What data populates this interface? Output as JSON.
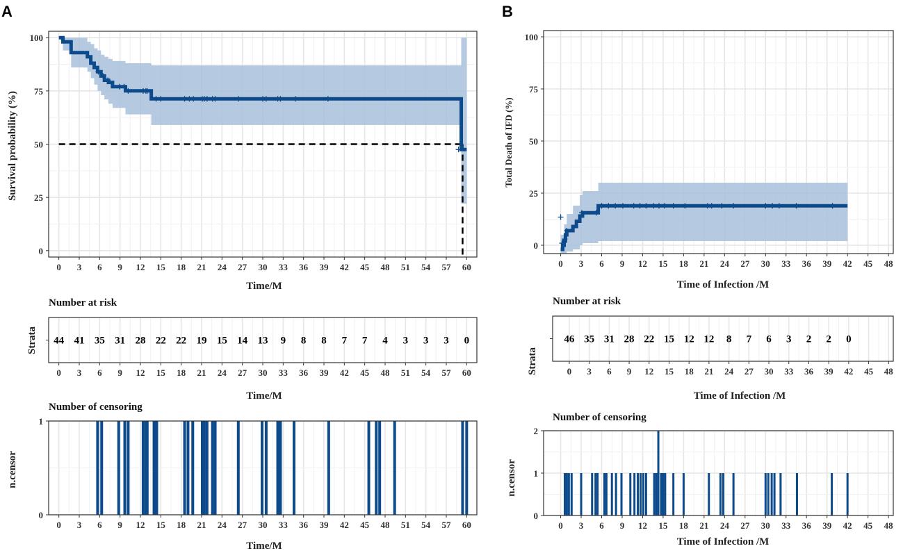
{
  "colors": {
    "curve": "#0d4a8c",
    "band": "#a8c0da",
    "dash": "#000000"
  },
  "panel_a": {
    "label": "A",
    "xlabel": "Time/M",
    "ylabel": "Survival probability (%)",
    "risk_title": "Number at risk",
    "risk_ylabel": "Strata",
    "risk_xlabel": "Time/M",
    "censor_title": "Number of censoring",
    "censor_ylabel": "n.censor",
    "censor_xlabel": "Time/M"
  },
  "panel_b": {
    "label": "B",
    "xlabel": "Time of Infection /M",
    "ylabel": "Total  Death of IFD  (%)",
    "risk_title": "Number at risk",
    "risk_ylabel": "Strata",
    "risk_xlabel": "Time of Infection /M",
    "censor_title": "Number of censoring",
    "censor_ylabel": "n.censor",
    "censor_xlabel": "Time of Infection /M"
  },
  "chart_data": [
    {
      "id": "A-main",
      "type": "line",
      "title": "",
      "xlabel": "Time/M",
      "ylabel": "Survival probability (%)",
      "xlim": [
        -1.5,
        61.5
      ],
      "ylim": [
        -3,
        103
      ],
      "xticks": [
        0,
        3,
        6,
        9,
        12,
        15,
        18,
        21,
        24,
        27,
        30,
        33,
        36,
        39,
        42,
        45,
        48,
        51,
        54,
        57,
        60
      ],
      "yticks": [
        0,
        25,
        50,
        75,
        100
      ],
      "survival": [
        [
          0,
          100
        ],
        [
          0.6,
          100
        ],
        [
          0.6,
          98
        ],
        [
          1.8,
          98
        ],
        [
          1.8,
          93
        ],
        [
          4.2,
          93
        ],
        [
          4.2,
          91
        ],
        [
          4.7,
          91
        ],
        [
          4.7,
          88
        ],
        [
          5.2,
          88
        ],
        [
          5.2,
          86
        ],
        [
          5.7,
          86
        ],
        [
          5.7,
          84
        ],
        [
          6.2,
          84
        ],
        [
          6.2,
          82
        ],
        [
          6.7,
          82
        ],
        [
          6.7,
          80
        ],
        [
          7.3,
          80
        ],
        [
          7.3,
          79
        ],
        [
          7.9,
          79
        ],
        [
          7.9,
          77
        ],
        [
          9.8,
          77
        ],
        [
          9.8,
          75
        ],
        [
          13.6,
          75
        ],
        [
          13.6,
          71.3
        ],
        [
          59.2,
          71.3
        ],
        [
          59.2,
          47.5
        ],
        [
          60,
          47.5
        ]
      ],
      "ci_upper": [
        [
          0,
          100
        ],
        [
          0.6,
          100
        ],
        [
          1.8,
          100
        ],
        [
          4.2,
          98
        ],
        [
          4.7,
          97
        ],
        [
          5.2,
          95
        ],
        [
          5.7,
          94
        ],
        [
          6.2,
          92
        ],
        [
          6.7,
          91
        ],
        [
          7.3,
          90
        ],
        [
          7.9,
          89
        ],
        [
          9.8,
          88
        ],
        [
          13.6,
          87
        ],
        [
          59.2,
          87
        ],
        [
          59.2,
          100
        ],
        [
          60,
          100
        ]
      ],
      "ci_lower": [
        [
          0,
          100
        ],
        [
          0.6,
          94
        ],
        [
          1.8,
          86
        ],
        [
          4.2,
          84
        ],
        [
          4.7,
          81
        ],
        [
          5.2,
          78
        ],
        [
          5.7,
          75
        ],
        [
          6.2,
          73
        ],
        [
          6.7,
          71
        ],
        [
          7.3,
          69
        ],
        [
          7.9,
          67
        ],
        [
          9.8,
          64
        ],
        [
          13.6,
          59
        ],
        [
          59.2,
          59
        ],
        [
          59.2,
          22
        ],
        [
          60,
          22
        ]
      ],
      "censor_marks": [
        [
          5.8,
          84
        ],
        [
          6.5,
          82
        ],
        [
          7.2,
          80
        ],
        [
          8.9,
          77
        ],
        [
          9.6,
          77
        ],
        [
          10.2,
          75
        ],
        [
          12.4,
          75
        ],
        [
          12.8,
          75
        ],
        [
          13.0,
          75
        ],
        [
          14.3,
          71.3
        ],
        [
          15.0,
          71.3
        ],
        [
          18.5,
          71.3
        ],
        [
          19.2,
          71.3
        ],
        [
          19.8,
          71.3
        ],
        [
          21.1,
          71.3
        ],
        [
          21.4,
          71.3
        ],
        [
          21.8,
          71.3
        ],
        [
          22.6,
          71.3
        ],
        [
          23.0,
          71.3
        ],
        [
          26.4,
          71.3
        ],
        [
          30.0,
          71.3
        ],
        [
          30.5,
          71.3
        ],
        [
          32.2,
          71.3
        ],
        [
          32.6,
          71.3
        ],
        [
          34.8,
          71.3
        ],
        [
          39.6,
          71.3
        ],
        [
          58.8,
          47.5
        ]
      ],
      "median_line": {
        "y": 50,
        "x": 59.4
      }
    },
    {
      "id": "A-risk",
      "type": "table",
      "title": "Number at risk",
      "xlabel": "Time/M",
      "ylabel": "Strata",
      "times": [
        0,
        3,
        6,
        9,
        12,
        15,
        18,
        21,
        24,
        27,
        30,
        33,
        36,
        39,
        42,
        45,
        48,
        51,
        54,
        57,
        60
      ],
      "values": [
        44,
        41,
        35,
        31,
        28,
        22,
        22,
        19,
        15,
        14,
        13,
        9,
        8,
        8,
        7,
        7,
        4,
        3,
        3,
        3,
        0
      ]
    },
    {
      "id": "A-censor",
      "type": "bar",
      "title": "Number of censoring",
      "xlabel": "Time/M",
      "ylabel": "n.censor",
      "xlim": [
        -1.5,
        61.5
      ],
      "ylim": [
        0,
        1
      ],
      "xticks": [
        0,
        3,
        6,
        9,
        12,
        15,
        18,
        21,
        24,
        27,
        30,
        33,
        36,
        39,
        42,
        45,
        48,
        51,
        54,
        57,
        60
      ],
      "yticks": [
        0,
        1
      ],
      "x": [
        5.7,
        6.3,
        8.8,
        9.7,
        10.2,
        12.4,
        12.8,
        13.0,
        14.0,
        14.4,
        18.5,
        19.0,
        19.7,
        21.1,
        21.4,
        21.8,
        22.6,
        23.0,
        26.4,
        29.9,
        30.5,
        32.2,
        32.6,
        34.6,
        39.7,
        45.6,
        46.7,
        47.2,
        49.4,
        59.4,
        60.0
      ],
      "values": [
        1,
        1,
        1,
        1,
        1,
        1,
        1,
        1,
        1,
        1,
        1,
        1,
        1,
        1,
        1,
        1,
        1,
        1,
        1,
        1,
        1,
        1,
        1,
        1,
        1,
        1,
        1,
        1,
        1,
        1,
        1
      ]
    },
    {
      "id": "B-main",
      "type": "line",
      "title": "",
      "xlabel": "Time of Infection /M",
      "ylabel": "Total  Death of IFD  (%)",
      "xlim": [
        -2.5,
        48.7
      ],
      "ylim": [
        -4,
        103
      ],
      "xticks": [
        0,
        3,
        6,
        9,
        12,
        15,
        18,
        21,
        24,
        27,
        30,
        33,
        36,
        39,
        42,
        45,
        48
      ],
      "yticks": [
        0,
        25,
        50,
        75,
        100
      ],
      "survival": [
        [
          0,
          -2
        ],
        [
          0.3,
          -2
        ],
        [
          0.3,
          0
        ],
        [
          0.5,
          0
        ],
        [
          0.5,
          2
        ],
        [
          0.7,
          2
        ],
        [
          0.7,
          5
        ],
        [
          0.9,
          5
        ],
        [
          0.9,
          7
        ],
        [
          1.8,
          7
        ],
        [
          1.8,
          9
        ],
        [
          2.3,
          9
        ],
        [
          2.3,
          11.5
        ],
        [
          2.8,
          11.5
        ],
        [
          2.8,
          14
        ],
        [
          3.2,
          14
        ],
        [
          3.2,
          15.6
        ],
        [
          5.5,
          15.6
        ],
        [
          5.5,
          18.9
        ],
        [
          42,
          18.9
        ]
      ],
      "ci_upper": [
        [
          0,
          5
        ],
        [
          0.5,
          10
        ],
        [
          0.9,
          15
        ],
        [
          1.8,
          19
        ],
        [
          2.8,
          24
        ],
        [
          3.2,
          26
        ],
        [
          5.5,
          26
        ],
        [
          5.5,
          30
        ],
        [
          42,
          30
        ]
      ],
      "ci_lower": [
        [
          0,
          -4
        ],
        [
          0.9,
          -3
        ],
        [
          1.8,
          -2
        ],
        [
          2.8,
          0
        ],
        [
          3.2,
          1
        ],
        [
          5.5,
          2
        ],
        [
          42,
          2
        ]
      ],
      "censor_marks": [
        [
          0,
          13.5
        ],
        [
          0.2,
          1
        ],
        [
          0.6,
          3
        ],
        [
          0.9,
          7
        ],
        [
          3.1,
          15.6
        ],
        [
          5.2,
          15.6
        ],
        [
          6.0,
          18.9
        ],
        [
          7.0,
          18.9
        ],
        [
          8.0,
          18.9
        ],
        [
          9.1,
          18.9
        ],
        [
          10.7,
          18.9
        ],
        [
          11.6,
          18.9
        ],
        [
          12.5,
          18.9
        ],
        [
          13.6,
          18.9
        ],
        [
          14.4,
          18.9
        ],
        [
          15.2,
          18.9
        ],
        [
          16.5,
          18.9
        ],
        [
          18.2,
          18.9
        ],
        [
          21.5,
          18.9
        ],
        [
          22.1,
          18.9
        ],
        [
          23.6,
          18.9
        ],
        [
          25.3,
          18.9
        ],
        [
          30.0,
          18.9
        ],
        [
          31.0,
          18.9
        ],
        [
          32.0,
          18.9
        ],
        [
          34.5,
          18.9
        ],
        [
          39.8,
          18.9
        ]
      ],
      "median_line": null
    },
    {
      "id": "B-risk",
      "type": "table",
      "title": "Number at risk",
      "xlabel": "Time of Infection /M",
      "ylabel": "Strata",
      "times": [
        0,
        3,
        6,
        9,
        12,
        15,
        18,
        21,
        24,
        27,
        30,
        33,
        36,
        39,
        42,
        45,
        48
      ],
      "values": [
        46,
        35,
        31,
        28,
        22,
        15,
        12,
        12,
        8,
        7,
        6,
        3,
        2,
        2,
        0,
        null,
        null
      ]
    },
    {
      "id": "B-censor",
      "type": "bar",
      "title": "Number of censoring",
      "xlabel": "Time of Infection /M",
      "ylabel": "n.censor",
      "xlim": [
        -2.5,
        48.7
      ],
      "ylim": [
        0,
        2
      ],
      "xticks": [
        0,
        3,
        6,
        9,
        12,
        15,
        18,
        21,
        24,
        27,
        30,
        33,
        36,
        39,
        42,
        45,
        48
      ],
      "yticks": [
        0,
        1,
        2
      ],
      "x": [
        0.6,
        0.9,
        1.2,
        1.6,
        3.0,
        4.6,
        5.1,
        5.4,
        6.4,
        6.7,
        7.5,
        8.1,
        8.9,
        10.2,
        10.8,
        11.3,
        11.7,
        12.1,
        12.5,
        13.7,
        14.0,
        14.3,
        14.7,
        15.0,
        15.3,
        16.5,
        18.0,
        21.7,
        23.4,
        23.8,
        25.3,
        30.0,
        30.4,
        30.9,
        31.3,
        32.2,
        34.6,
        39.7,
        42.0
      ],
      "values": [
        1,
        1,
        1,
        1,
        1,
        1,
        1,
        1,
        1,
        1,
        1,
        1,
        1,
        1,
        1,
        1,
        1,
        1,
        1,
        1,
        1,
        2,
        1,
        1,
        1,
        1,
        1,
        1,
        1,
        1,
        1,
        1,
        1,
        1,
        1,
        1,
        1,
        1,
        1
      ]
    }
  ]
}
